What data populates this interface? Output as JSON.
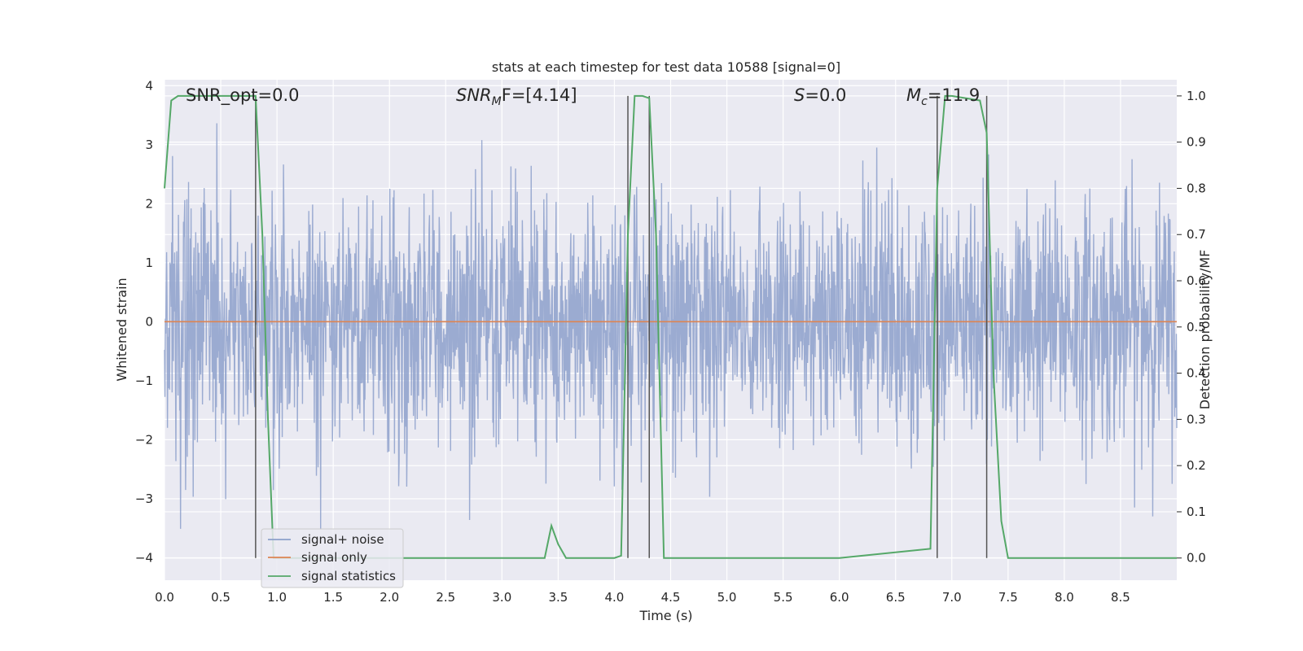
{
  "chart_data": {
    "type": "line",
    "title": "stats at each timestep for test data 10588 [signal=0]",
    "xlabel": "Time (s)",
    "ylabel_left": "Whitened strain",
    "ylabel_right": "Detection probability/MF",
    "xlim": [
      0.0,
      9.0
    ],
    "ylim_left": [
      -4.38,
      4.1
    ],
    "ylim_right": [
      -0.048,
      1.035
    ],
    "x_ticks": [
      "0.0",
      "0.5",
      "1.0",
      "1.5",
      "2.0",
      "2.5",
      "3.0",
      "3.5",
      "4.0",
      "4.5",
      "5.0",
      "5.5",
      "6.0",
      "6.5",
      "7.0",
      "7.5",
      "8.0",
      "8.5"
    ],
    "y_ticks_left": [
      "4",
      "3",
      "2",
      "1",
      "0",
      "−1",
      "−2",
      "−3",
      "−4"
    ],
    "y_ticks_right": [
      "1.0",
      "0.9",
      "0.8",
      "0.7",
      "0.6",
      "0.5",
      "0.4",
      "0.3",
      "0.2",
      "0.1",
      "0.0"
    ],
    "grid": true,
    "legend_position": "lower-left",
    "annotations": {
      "snr_opt": "SNR_opt=0.0",
      "snr_mf": "SNR",
      "snr_mf_sub": "M",
      "snr_mf_rest": "F=[4.14]",
      "s": "S",
      "s_rest": "=0.0",
      "mc": "M",
      "mc_sub": "c",
      "mc_rest": "=11.9"
    },
    "series": [
      {
        "name": "signal+ noise",
        "color": "#8da0cb",
        "axis": "left",
        "description_note": "whitened noise, std ~1, range approx -3.9 to 3.7",
        "amplitude_range": [
          -3.9,
          3.7
        ]
      },
      {
        "name": "signal only",
        "color": "#dd8452",
        "axis": "left",
        "x": [
          0.0,
          9.0
        ],
        "y": [
          0.0,
          0.0
        ]
      },
      {
        "name": "signal statistics",
        "color": "#55a868",
        "axis": "right",
        "x": [
          0.0,
          0.06,
          0.12,
          0.25,
          0.5,
          0.75,
          0.81,
          0.87,
          0.92,
          0.97,
          1.05,
          1.5,
          2.0,
          2.5,
          3.0,
          3.38,
          3.44,
          3.5,
          3.57,
          3.7,
          4.0,
          4.06,
          4.12,
          4.18,
          4.25,
          4.31,
          4.37,
          4.44,
          4.6,
          5.0,
          6.0,
          6.81,
          6.87,
          6.94,
          7.0,
          7.25,
          7.31,
          7.37,
          7.44,
          7.5,
          8.0,
          9.0
        ],
        "y": [
          0.8,
          0.99,
          1.0,
          1.0,
          1.0,
          1.0,
          1.0,
          0.7,
          0.3,
          0.0,
          0.0,
          0.0,
          0.0,
          0.0,
          0.0,
          0.0,
          0.07,
          0.03,
          0.0,
          0.0,
          0.0,
          0.005,
          0.7,
          1.0,
          1.0,
          0.995,
          0.7,
          0.0,
          0.0,
          0.0,
          0.0,
          0.02,
          0.8,
          1.0,
          1.0,
          0.99,
          0.92,
          0.4,
          0.08,
          0.0,
          0.0,
          0.0
        ]
      }
    ],
    "vertical_markers": {
      "color": "#555555",
      "x": [
        0.81,
        4.12,
        4.31,
        6.87,
        7.31
      ],
      "y_right": [
        0.0,
        1.0
      ]
    }
  }
}
